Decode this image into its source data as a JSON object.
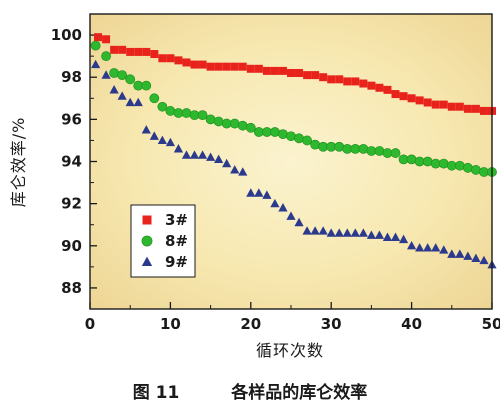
{
  "chart_data": {
    "type": "scatter",
    "xlabel": "循环次数",
    "ylabel": "库仑效率/%",
    "xlim": [
      0,
      50
    ],
    "ylim": [
      87,
      101
    ],
    "x_ticks": [
      0,
      10,
      20,
      30,
      40,
      50
    ],
    "y_ticks": [
      88,
      90,
      92,
      94,
      96,
      98,
      100
    ],
    "legend_position": "lower-left",
    "background": "radial-gradient-cream",
    "series": [
      {
        "name": "3#",
        "marker": "square",
        "color": "#e8231c",
        "points": [
          [
            1,
            99.9
          ],
          [
            2,
            99.8
          ],
          [
            3,
            99.3
          ],
          [
            4,
            99.3
          ],
          [
            5,
            99.2
          ],
          [
            6,
            99.2
          ],
          [
            7,
            99.2
          ],
          [
            8,
            99.1
          ],
          [
            9,
            98.9
          ],
          [
            10,
            98.9
          ],
          [
            11,
            98.8
          ],
          [
            12,
            98.7
          ],
          [
            13,
            98.6
          ],
          [
            14,
            98.6
          ],
          [
            15,
            98.5
          ],
          [
            16,
            98.5
          ],
          [
            17,
            98.5
          ],
          [
            18,
            98.5
          ],
          [
            19,
            98.5
          ],
          [
            20,
            98.4
          ],
          [
            21,
            98.4
          ],
          [
            22,
            98.3
          ],
          [
            23,
            98.3
          ],
          [
            24,
            98.3
          ],
          [
            25,
            98.2
          ],
          [
            26,
            98.2
          ],
          [
            27,
            98.1
          ],
          [
            28,
            98.1
          ],
          [
            29,
            98.0
          ],
          [
            30,
            97.9
          ],
          [
            31,
            97.9
          ],
          [
            32,
            97.8
          ],
          [
            33,
            97.8
          ],
          [
            34,
            97.7
          ],
          [
            35,
            97.6
          ],
          [
            36,
            97.5
          ],
          [
            37,
            97.4
          ],
          [
            38,
            97.2
          ],
          [
            39,
            97.1
          ],
          [
            40,
            97.0
          ],
          [
            41,
            96.9
          ],
          [
            42,
            96.8
          ],
          [
            43,
            96.7
          ],
          [
            44,
            96.7
          ],
          [
            45,
            96.6
          ],
          [
            46,
            96.6
          ],
          [
            47,
            96.5
          ],
          [
            48,
            96.5
          ],
          [
            49,
            96.4
          ],
          [
            50,
            96.4
          ]
        ]
      },
      {
        "name": "8#",
        "marker": "circle",
        "color": "#2eb82e",
        "points": [
          [
            0.7,
            99.5
          ],
          [
            2,
            99.0
          ],
          [
            3,
            98.2
          ],
          [
            4,
            98.1
          ],
          [
            5,
            97.9
          ],
          [
            6,
            97.6
          ],
          [
            7,
            97.6
          ],
          [
            8,
            97.0
          ],
          [
            9,
            96.6
          ],
          [
            10,
            96.4
          ],
          [
            11,
            96.3
          ],
          [
            12,
            96.3
          ],
          [
            13,
            96.2
          ],
          [
            14,
            96.2
          ],
          [
            15,
            96.0
          ],
          [
            16,
            95.9
          ],
          [
            17,
            95.8
          ],
          [
            18,
            95.8
          ],
          [
            19,
            95.7
          ],
          [
            20,
            95.6
          ],
          [
            21,
            95.4
          ],
          [
            22,
            95.4
          ],
          [
            23,
            95.4
          ],
          [
            24,
            95.3
          ],
          [
            25,
            95.2
          ],
          [
            26,
            95.1
          ],
          [
            27,
            95.0
          ],
          [
            28,
            94.8
          ],
          [
            29,
            94.7
          ],
          [
            30,
            94.7
          ],
          [
            31,
            94.7
          ],
          [
            32,
            94.6
          ],
          [
            33,
            94.6
          ],
          [
            34,
            94.6
          ],
          [
            35,
            94.5
          ],
          [
            36,
            94.5
          ],
          [
            37,
            94.4
          ],
          [
            38,
            94.4
          ],
          [
            39,
            94.1
          ],
          [
            40,
            94.1
          ],
          [
            41,
            94.0
          ],
          [
            42,
            94.0
          ],
          [
            43,
            93.9
          ],
          [
            44,
            93.9
          ],
          [
            45,
            93.8
          ],
          [
            46,
            93.8
          ],
          [
            47,
            93.7
          ],
          [
            48,
            93.6
          ],
          [
            49,
            93.5
          ],
          [
            50,
            93.5
          ]
        ]
      },
      {
        "name": "9#",
        "marker": "triangle",
        "color": "#2b3a8c",
        "points": [
          [
            0.7,
            98.6
          ],
          [
            2,
            98.1
          ],
          [
            3,
            97.4
          ],
          [
            4,
            97.1
          ],
          [
            5,
            96.8
          ],
          [
            6,
            96.8
          ],
          [
            7,
            95.5
          ],
          [
            8,
            95.2
          ],
          [
            9,
            95.0
          ],
          [
            10,
            94.9
          ],
          [
            11,
            94.6
          ],
          [
            12,
            94.3
          ],
          [
            13,
            94.3
          ],
          [
            14,
            94.3
          ],
          [
            15,
            94.2
          ],
          [
            16,
            94.1
          ],
          [
            17,
            93.9
          ],
          [
            18,
            93.6
          ],
          [
            19,
            93.5
          ],
          [
            20,
            92.5
          ],
          [
            21,
            92.5
          ],
          [
            22,
            92.4
          ],
          [
            23,
            92.0
          ],
          [
            24,
            91.8
          ],
          [
            25,
            91.4
          ],
          [
            26,
            91.1
          ],
          [
            27,
            90.7
          ],
          [
            28,
            90.7
          ],
          [
            29,
            90.7
          ],
          [
            30,
            90.6
          ],
          [
            31,
            90.6
          ],
          [
            32,
            90.6
          ],
          [
            33,
            90.6
          ],
          [
            34,
            90.6
          ],
          [
            35,
            90.5
          ],
          [
            36,
            90.5
          ],
          [
            37,
            90.4
          ],
          [
            38,
            90.4
          ],
          [
            39,
            90.3
          ],
          [
            40,
            90.0
          ],
          [
            41,
            89.9
          ],
          [
            42,
            89.9
          ],
          [
            43,
            89.9
          ],
          [
            44,
            89.8
          ],
          [
            45,
            89.6
          ],
          [
            46,
            89.6
          ],
          [
            47,
            89.5
          ],
          [
            48,
            89.4
          ],
          [
            49,
            89.3
          ],
          [
            50,
            89.1
          ]
        ]
      }
    ]
  },
  "caption": {
    "number": "图 11",
    "text": "各样品的库仑效率"
  }
}
